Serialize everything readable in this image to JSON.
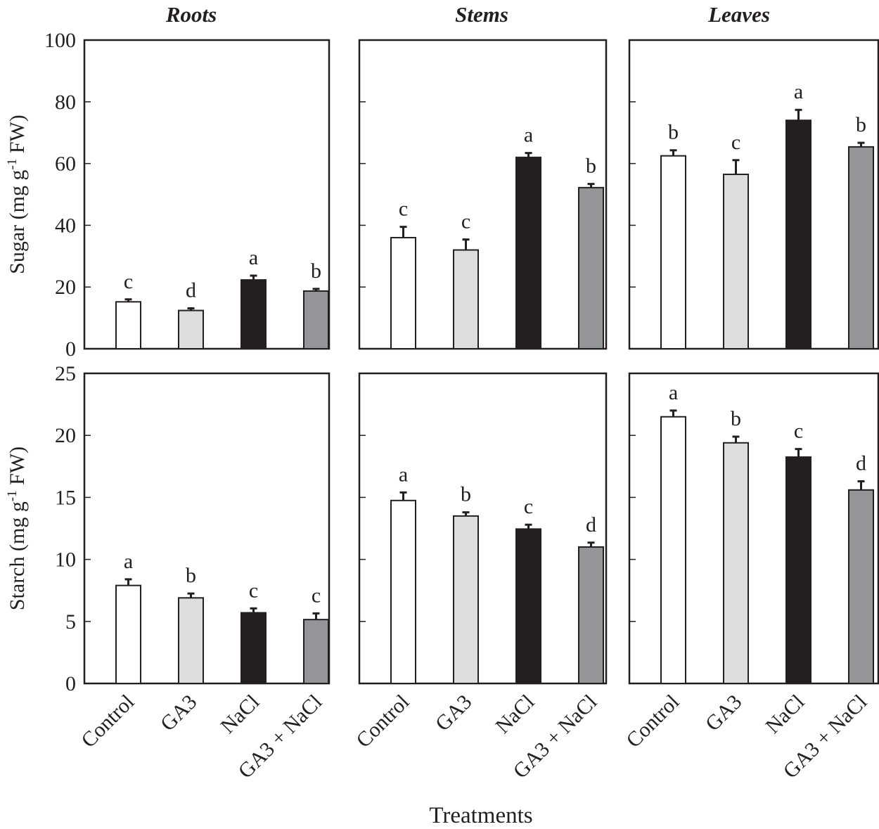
{
  "chart_data": {
    "type": "bar",
    "xlabel": "Treatments",
    "categories": [
      "Control",
      "GA3",
      "NaCl",
      "GA3 + NaCl"
    ],
    "category_colors": [
      "#ffffff",
      "#dcdddf",
      "#231f20",
      "#939598"
    ],
    "columns": [
      "Roots",
      "Stems",
      "Leaves"
    ],
    "rows": [
      {
        "ylabel": "Sugar (mg g-1 FW)",
        "ylabel_main": "Sugar (mg g",
        "ylabel_sup": "-1",
        "ylabel_end": " FW)",
        "ylim": [
          0,
          100
        ],
        "yticks": [
          "0",
          "20",
          "40",
          "60",
          "80",
          "100"
        ],
        "panels": [
          {
            "title": "Roots",
            "values": [
              15.2,
              12.4,
              22.3,
              18.7
            ],
            "errors": [
              0.8,
              0.7,
              1.4,
              0.7
            ],
            "letters": [
              "c",
              "d",
              "a",
              "b"
            ]
          },
          {
            "title": "Stems",
            "values": [
              36,
              32,
              62,
              52.2
            ],
            "errors": [
              3.5,
              3.4,
              1.4,
              1.2
            ],
            "letters": [
              "c",
              "c",
              "a",
              "b"
            ]
          },
          {
            "title": "Leaves",
            "values": [
              62.5,
              56.5,
              74,
              65.4
            ],
            "errors": [
              1.8,
              4.6,
              3.4,
              1.3
            ],
            "letters": [
              "b",
              "c",
              "a",
              "b"
            ]
          }
        ]
      },
      {
        "ylabel": "Starch (mg g-1 FW)",
        "ylabel_main": "Starch (mg g",
        "ylabel_sup": "-1",
        "ylabel_end": " FW)",
        "ylim": [
          0,
          25
        ],
        "yticks": [
          "0",
          "5",
          "10",
          "15",
          "20",
          "25"
        ],
        "panels": [
          {
            "title": "Roots",
            "values": [
              7.9,
              6.9,
              5.7,
              5.15
            ],
            "errors": [
              0.5,
              0.35,
              0.35,
              0.5
            ],
            "letters": [
              "a",
              "b",
              "c",
              "c"
            ]
          },
          {
            "title": "Stems",
            "values": [
              14.75,
              13.5,
              12.45,
              11
            ],
            "errors": [
              0.65,
              0.3,
              0.35,
              0.35
            ],
            "letters": [
              "a",
              "b",
              "c",
              "d"
            ]
          },
          {
            "title": "Leaves",
            "values": [
              21.5,
              19.4,
              18.25,
              15.6
            ],
            "errors": [
              0.5,
              0.5,
              0.65,
              0.7
            ],
            "letters": [
              "a",
              "b",
              "c",
              "d"
            ]
          }
        ]
      }
    ],
    "grid": false,
    "legend": "none"
  }
}
